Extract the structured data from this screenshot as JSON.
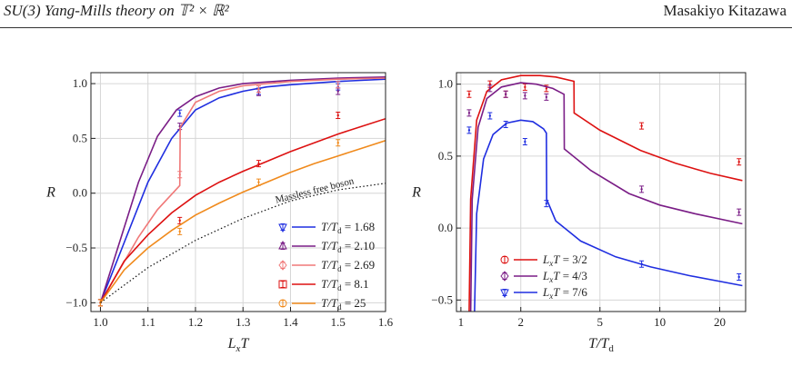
{
  "header": {
    "left_title": "SU(3) Yang-Mills theory on 𝕋² × ℝ²",
    "right_author": "Masakiyo Kitazawa"
  },
  "chart_data": [
    {
      "type": "line",
      "xlabel": "LxT",
      "ylabel": "R",
      "xlim": [
        0.98,
        1.6
      ],
      "ylim": [
        -1.08,
        1.1
      ],
      "xticks": [
        "1.0",
        "1.1",
        "1.2",
        "1.3",
        "1.4",
        "1.5",
        "1.6"
      ],
      "xtick_values": [
        1.0,
        1.1,
        1.2,
        1.3,
        1.4,
        1.5,
        1.6
      ],
      "yticks": [
        "-1.0",
        "-0.5",
        "0.0",
        "0.5",
        "1.0"
      ],
      "ytick_values": [
        -1.0,
        -0.5,
        0.0,
        0.5,
        1.0
      ],
      "grid": true,
      "legend_position": "bottom-right",
      "annotation": "Massless free boson",
      "series": [
        {
          "name": "T/Td = 1.68",
          "color": "#1f2ee0",
          "marker": "triangle-down",
          "line": [
            [
              1.0,
              -1.0
            ],
            [
              1.05,
              -0.45
            ],
            [
              1.1,
              0.1
            ],
            [
              1.15,
              0.5
            ],
            [
              1.2,
              0.76
            ],
            [
              1.25,
              0.87
            ],
            [
              1.3,
              0.93
            ],
            [
              1.35,
              0.97
            ],
            [
              1.4,
              0.99
            ],
            [
              1.5,
              1.02
            ],
            [
              1.6,
              1.04
            ]
          ],
          "points": [
            [
              1.0,
              -1.0
            ],
            [
              1.167,
              0.73
            ],
            [
              1.333,
              0.93
            ],
            [
              1.5,
              0.97
            ]
          ]
        },
        {
          "name": "T/Td = 2.10",
          "color": "#7a1d86",
          "marker": "triangle-up",
          "line": [
            [
              1.0,
              -1.0
            ],
            [
              1.04,
              -0.45
            ],
            [
              1.08,
              0.1
            ],
            [
              1.12,
              0.52
            ],
            [
              1.16,
              0.76
            ],
            [
              1.2,
              0.88
            ],
            [
              1.25,
              0.96
            ],
            [
              1.3,
              1.0
            ],
            [
              1.4,
              1.03
            ],
            [
              1.5,
              1.05
            ],
            [
              1.6,
              1.06
            ]
          ],
          "points": [
            [
              1.0,
              -1.0
            ],
            [
              1.167,
              0.61
            ],
            [
              1.333,
              0.92
            ],
            [
              1.5,
              0.93
            ]
          ]
        },
        {
          "name": "T/Td = 2.69",
          "color": "#f07878",
          "marker": "diamond",
          "line": [
            [
              1.0,
              -1.0
            ],
            [
              1.04,
              -0.7
            ],
            [
              1.08,
              -0.4
            ],
            [
              1.12,
              -0.15
            ],
            [
              1.167,
              0.07
            ],
            [
              1.168,
              0.6
            ],
            [
              1.2,
              0.83
            ],
            [
              1.25,
              0.93
            ],
            [
              1.3,
              0.98
            ],
            [
              1.4,
              1.02
            ],
            [
              1.5,
              1.04
            ],
            [
              1.6,
              1.05
            ]
          ],
          "points": [
            [
              1.0,
              -1.0
            ],
            [
              1.167,
              0.17
            ],
            [
              1.333,
              0.95
            ],
            [
              1.5,
              0.99
            ]
          ]
        },
        {
          "name": "T/Td = 8.1",
          "color": "#dd1111",
          "marker": "square",
          "line": [
            [
              1.0,
              -1.0
            ],
            [
              1.05,
              -0.62
            ],
            [
              1.1,
              -0.38
            ],
            [
              1.15,
              -0.18
            ],
            [
              1.2,
              -0.02
            ],
            [
              1.25,
              0.1
            ],
            [
              1.3,
              0.2
            ],
            [
              1.35,
              0.29
            ],
            [
              1.4,
              0.38
            ],
            [
              1.45,
              0.46
            ],
            [
              1.5,
              0.54
            ],
            [
              1.55,
              0.61
            ],
            [
              1.6,
              0.68
            ]
          ],
          "points": [
            [
              1.0,
              -1.0
            ],
            [
              1.167,
              -0.25
            ],
            [
              1.333,
              0.27
            ],
            [
              1.5,
              0.71
            ]
          ]
        },
        {
          "name": "T/Td = 25",
          "color": "#f08a1c",
          "marker": "circle",
          "line": [
            [
              1.0,
              -1.0
            ],
            [
              1.05,
              -0.7
            ],
            [
              1.1,
              -0.5
            ],
            [
              1.15,
              -0.34
            ],
            [
              1.2,
              -0.2
            ],
            [
              1.25,
              -0.09
            ],
            [
              1.3,
              0.01
            ],
            [
              1.35,
              0.1
            ],
            [
              1.4,
              0.19
            ],
            [
              1.45,
              0.27
            ],
            [
              1.5,
              0.34
            ],
            [
              1.55,
              0.41
            ],
            [
              1.6,
              0.48
            ]
          ],
          "points": [
            [
              1.0,
              -1.0
            ],
            [
              1.167,
              -0.35
            ],
            [
              1.333,
              0.1
            ],
            [
              1.5,
              0.46
            ]
          ]
        },
        {
          "name": "Massless free boson",
          "color": "#111111",
          "marker": "none",
          "dotted": true,
          "line": [
            [
              1.0,
              -1.0
            ],
            [
              1.1,
              -0.68
            ],
            [
              1.2,
              -0.43
            ],
            [
              1.3,
              -0.23
            ],
            [
              1.4,
              -0.07
            ],
            [
              1.5,
              0.03
            ],
            [
              1.6,
              0.09
            ]
          ],
          "points": []
        }
      ]
    },
    {
      "type": "line",
      "xlabel": "T/Td",
      "ylabel": "R",
      "xscale": "log",
      "xlim": [
        0.95,
        27
      ],
      "ylim": [
        -0.58,
        1.08
      ],
      "xticks": [
        "1",
        "2",
        "5",
        "10",
        "20"
      ],
      "xtick_values": [
        1,
        2,
        5,
        10,
        20
      ],
      "yticks": [
        "-0.5",
        "0.0",
        "0.5",
        "1.0"
      ],
      "ytick_values": [
        -0.5,
        0.0,
        0.5,
        1.0
      ],
      "grid": true,
      "legend_position": "bottom-left",
      "series": [
        {
          "name": "LxT = 3/2",
          "color": "#dd1111",
          "marker": "circle",
          "line": [
            [
              1.1,
              -0.6
            ],
            [
              1.12,
              0.2
            ],
            [
              1.2,
              0.75
            ],
            [
              1.35,
              0.95
            ],
            [
              1.6,
              1.03
            ],
            [
              2.0,
              1.06
            ],
            [
              2.5,
              1.06
            ],
            [
              3.0,
              1.05
            ],
            [
              3.7,
              1.02
            ],
            [
              3.71,
              0.8
            ],
            [
              5,
              0.68
            ],
            [
              8,
              0.54
            ],
            [
              12,
              0.45
            ],
            [
              18,
              0.38
            ],
            [
              26,
              0.33
            ]
          ],
          "points": [
            [
              1.1,
              0.93
            ],
            [
              1.4,
              1.0
            ],
            [
              1.68,
              0.93
            ],
            [
              2.1,
              0.98
            ],
            [
              2.69,
              0.97
            ],
            [
              8.1,
              0.71
            ],
            [
              25,
              0.46
            ]
          ]
        },
        {
          "name": "LxT = 4/3",
          "color": "#7a1d86",
          "marker": "diamond",
          "line": [
            [
              1.12,
              -0.6
            ],
            [
              1.14,
              0.2
            ],
            [
              1.22,
              0.7
            ],
            [
              1.35,
              0.9
            ],
            [
              1.6,
              0.98
            ],
            [
              2.0,
              1.01
            ],
            [
              2.4,
              1.0
            ],
            [
              2.9,
              0.97
            ],
            [
              3.3,
              0.93
            ],
            [
              3.31,
              0.55
            ],
            [
              4.5,
              0.4
            ],
            [
              7,
              0.24
            ],
            [
              10,
              0.16
            ],
            [
              15,
              0.1
            ],
            [
              26,
              0.03
            ]
          ],
          "points": [
            [
              1.1,
              0.8
            ],
            [
              1.4,
              0.97
            ],
            [
              1.68,
              0.93
            ],
            [
              2.1,
              0.92
            ],
            [
              2.69,
              0.91
            ],
            [
              8.1,
              0.27
            ],
            [
              25,
              0.11
            ]
          ]
        },
        {
          "name": "LxT = 7/6",
          "color": "#1f2ee0",
          "marker": "triangle-down",
          "line": [
            [
              1.17,
              -0.6
            ],
            [
              1.2,
              0.1
            ],
            [
              1.3,
              0.48
            ],
            [
              1.45,
              0.65
            ],
            [
              1.7,
              0.73
            ],
            [
              2.0,
              0.75
            ],
            [
              2.3,
              0.74
            ],
            [
              2.6,
              0.69
            ],
            [
              2.69,
              0.66
            ],
            [
              2.7,
              0.2
            ],
            [
              3,
              0.05
            ],
            [
              4,
              -0.09
            ],
            [
              6,
              -0.2
            ],
            [
              9,
              -0.27
            ],
            [
              14,
              -0.33
            ],
            [
              26,
              -0.4
            ]
          ],
          "points": [
            [
              1.1,
              0.68
            ],
            [
              1.4,
              0.78
            ],
            [
              1.68,
              0.72
            ],
            [
              2.1,
              0.6
            ],
            [
              2.69,
              0.17
            ],
            [
              8.1,
              -0.25
            ],
            [
              25,
              -0.34
            ]
          ]
        }
      ]
    }
  ]
}
